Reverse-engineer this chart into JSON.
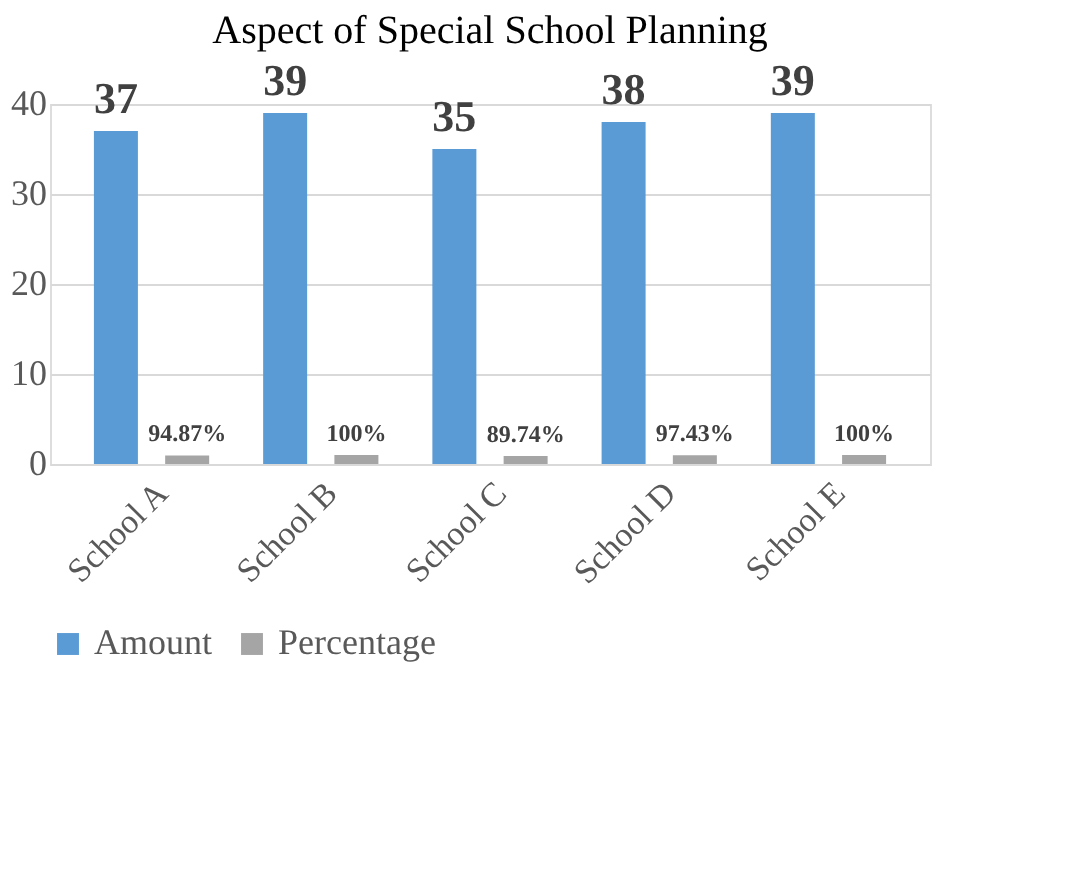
{
  "chart_data": {
    "type": "bar",
    "title": "Aspect of Special School Planning",
    "categories": [
      "School A",
      "School B",
      "School C",
      "School D",
      "School E"
    ],
    "series": [
      {
        "name": "Amount",
        "color": "#5b9bd5",
        "values": [
          37,
          39,
          35,
          38,
          39
        ],
        "value_labels": [
          "37",
          "39",
          "35",
          "38",
          "39"
        ]
      },
      {
        "name": "Percentage",
        "color": "#a5a5a5",
        "values": [
          0.9487,
          1,
          0.8974,
          0.9743,
          1
        ],
        "value_labels": [
          "94.87%",
          "100%",
          "89.74%",
          "97.43%",
          "100%"
        ]
      }
    ],
    "ylim": [
      0,
      40
    ],
    "yticks": [
      0,
      10,
      20,
      30,
      40
    ],
    "grid": "y",
    "legend": "bottom"
  }
}
